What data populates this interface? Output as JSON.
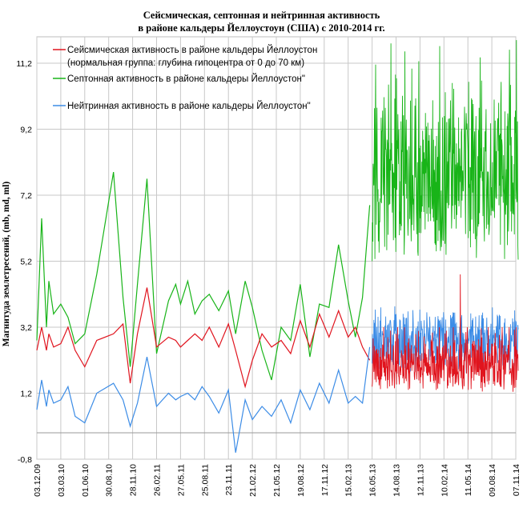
{
  "chart_data": {
    "type": "line",
    "title_lines": [
      "Сейсмическая, септонная и нейтринная активность",
      "в районе кальдеры Йеллоустоун (США) с 2010-2014 гг."
    ],
    "xlabel": "",
    "ylabel": "Магнитуда землетресений, (mb, md, ml)",
    "ylim": [
      -0.8,
      12.0
    ],
    "yticks": [
      "-0,8",
      "1,2",
      "3,2",
      "5,2",
      "7,2",
      "9,2",
      "11,2"
    ],
    "xticks": [
      "03.12.09",
      "03.03.10",
      "01.06.10",
      "30.08.10",
      "28.11.10",
      "26.02.11",
      "27.05.11",
      "25.08.11",
      "23.11.11",
      "21.02.12",
      "21.05.12",
      "19.08.12",
      "17.11.12",
      "15.02.13",
      "16.05.13",
      "14.08.13",
      "12.11.13",
      "10.02.14",
      "11.05.14",
      "09.08.14",
      "07.11.14"
    ],
    "grid": true,
    "legend": [
      {
        "lines": [
          "Сейсмическая активность в районе кальдеры Йеллоустон",
          "(нормальная группа: глубина гипоцентра от 0 до 70 км)"
        ],
        "color": "#e0141e"
      },
      {
        "lines": [
          "Септонная активность в районе кальдеры Йеллоустон\""
        ],
        "color": "#18b418"
      },
      {
        "lines": [
          "Нейтринная активность в районе кальдеры Йеллоустон\""
        ],
        "color": "#3c8ce6"
      }
    ],
    "series": [
      {
        "color": "#18b418",
        "x": [
          0.0,
          0.2,
          0.4,
          0.5,
          0.7,
          1.0,
          1.3,
          1.6,
          2.0,
          2.5,
          3.2,
          3.6,
          3.9,
          4.2,
          4.6,
          5.0,
          5.5,
          5.8,
          6.0,
          6.3,
          6.6,
          6.9,
          7.2,
          7.6,
          8.0,
          8.3,
          8.7,
          9.0,
          9.4,
          9.8,
          10.2,
          10.6,
          11.0,
          11.4,
          11.8,
          12.2,
          12.6,
          13.0,
          13.3,
          13.6,
          13.9
        ],
        "y": [
          2.8,
          6.5,
          3.2,
          4.6,
          3.6,
          3.9,
          3.5,
          2.7,
          3.0,
          4.8,
          7.9,
          4.1,
          2.0,
          4.5,
          7.7,
          2.4,
          4.0,
          4.5,
          3.9,
          4.6,
          3.6,
          4.0,
          4.2,
          3.7,
          4.3,
          3.0,
          4.6,
          3.8,
          2.5,
          1.6,
          3.2,
          2.8,
          4.5,
          2.3,
          3.9,
          3.8,
          5.7,
          4.0,
          2.9,
          4.1,
          6.9
        ]
      },
      {
        "color": "#e0141e",
        "x": [
          0.0,
          0.2,
          0.4,
          0.5,
          0.7,
          1.0,
          1.3,
          1.6,
          2.0,
          2.5,
          3.2,
          3.6,
          3.9,
          4.2,
          4.6,
          5.0,
          5.5,
          5.8,
          6.0,
          6.3,
          6.6,
          6.9,
          7.2,
          7.6,
          8.0,
          8.3,
          8.7,
          9.0,
          9.4,
          9.8,
          10.2,
          10.6,
          11.0,
          11.4,
          11.8,
          12.2,
          12.6,
          13.0,
          13.3,
          13.6,
          13.9
        ],
        "y": [
          2.5,
          3.2,
          2.5,
          3.0,
          2.6,
          2.7,
          3.2,
          2.5,
          2.0,
          2.8,
          3.0,
          3.3,
          1.5,
          3.0,
          4.4,
          2.6,
          2.9,
          2.8,
          2.6,
          2.8,
          3.0,
          2.8,
          3.2,
          2.6,
          3.3,
          2.5,
          1.4,
          2.2,
          3.0,
          2.6,
          2.8,
          2.4,
          3.4,
          2.6,
          3.6,
          2.9,
          3.7,
          2.9,
          3.2,
          2.6,
          2.2
        ]
      },
      {
        "color": "#3c8ce6",
        "x": [
          0.0,
          0.2,
          0.4,
          0.5,
          0.7,
          1.0,
          1.3,
          1.6,
          2.0,
          2.5,
          3.2,
          3.6,
          3.9,
          4.2,
          4.6,
          5.0,
          5.5,
          5.8,
          6.0,
          6.3,
          6.6,
          6.9,
          7.2,
          7.6,
          8.0,
          8.3,
          8.7,
          9.0,
          9.4,
          9.8,
          10.2,
          10.6,
          11.0,
          11.4,
          11.8,
          12.2,
          12.6,
          13.0,
          13.3,
          13.6,
          13.9
        ],
        "y": [
          0.7,
          1.6,
          0.8,
          1.3,
          0.9,
          1.0,
          1.4,
          0.5,
          0.3,
          1.2,
          1.5,
          1.0,
          0.2,
          0.9,
          2.3,
          0.8,
          1.2,
          1.0,
          1.1,
          1.2,
          1.0,
          1.4,
          1.1,
          0.6,
          1.3,
          -0.6,
          1.0,
          0.4,
          0.8,
          0.5,
          1.0,
          0.3,
          1.3,
          0.7,
          1.5,
          0.9,
          1.9,
          0.9,
          1.1,
          0.9,
          2.6
        ]
      },
      {
        "color": "#18b418",
        "x_range": [
          14.0,
          20.1
        ],
        "y_band": [
          5.0,
          11.8
        ],
        "note_values": [
          5.2,
          6.4,
          5.8,
          7.1,
          5.5,
          8.2,
          6.0,
          9.6,
          5.7,
          6.8,
          10.6,
          6.1,
          5.4,
          7.6,
          11.9,
          6.3,
          5.9,
          8.8,
          6.5,
          5.3
        ]
      },
      {
        "color": "#3c8ce6",
        "x_range": [
          14.0,
          20.1
        ],
        "y_band": [
          1.6,
          3.9
        ],
        "note_values": [
          2.1,
          2.9,
          2.4,
          3.4,
          2.2,
          3.8,
          2.6,
          3.1,
          2.3,
          3.6,
          2.0,
          2.8,
          3.5,
          2.5,
          3.2,
          2.2,
          2.7,
          3.9,
          2.4,
          3.0
        ]
      },
      {
        "color": "#e0141e",
        "x_range": [
          14.0,
          20.1
        ],
        "y_band": [
          1.2,
          3.2
        ],
        "note_values": [
          1.4,
          1.9,
          1.5,
          2.3,
          1.3,
          2.7,
          1.6,
          2.0,
          1.4,
          3.0,
          1.7,
          2.2,
          1.5,
          4.8,
          1.6,
          2.4,
          1.3,
          2.1,
          1.5,
          1.8
        ]
      }
    ]
  }
}
